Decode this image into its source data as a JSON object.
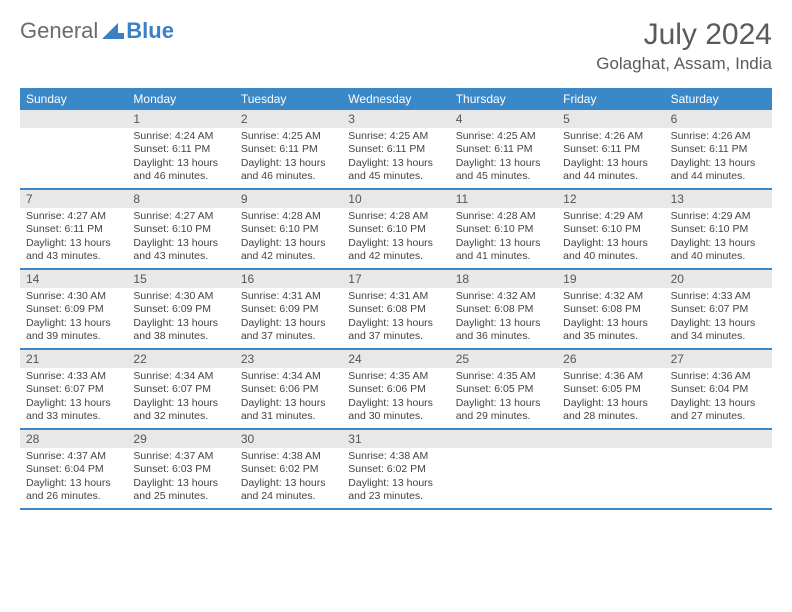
{
  "logo": {
    "text1": "General",
    "text2": "Blue"
  },
  "title": "July 2024",
  "location": "Golaghat, Assam, India",
  "colors": {
    "header_bg": "#3b88c9",
    "header_text": "#ffffff",
    "daynum_bg": "#e8e8e8",
    "text": "#444444",
    "logo_gray": "#6b6b6b",
    "logo_blue": "#3b7fc4"
  },
  "weekdays": [
    "Sunday",
    "Monday",
    "Tuesday",
    "Wednesday",
    "Thursday",
    "Friday",
    "Saturday"
  ],
  "weeks": [
    [
      {
        "n": "",
        "lines": []
      },
      {
        "n": "1",
        "lines": [
          "Sunrise: 4:24 AM",
          "Sunset: 6:11 PM",
          "Daylight: 13 hours",
          "and 46 minutes."
        ]
      },
      {
        "n": "2",
        "lines": [
          "Sunrise: 4:25 AM",
          "Sunset: 6:11 PM",
          "Daylight: 13 hours",
          "and 46 minutes."
        ]
      },
      {
        "n": "3",
        "lines": [
          "Sunrise: 4:25 AM",
          "Sunset: 6:11 PM",
          "Daylight: 13 hours",
          "and 45 minutes."
        ]
      },
      {
        "n": "4",
        "lines": [
          "Sunrise: 4:25 AM",
          "Sunset: 6:11 PM",
          "Daylight: 13 hours",
          "and 45 minutes."
        ]
      },
      {
        "n": "5",
        "lines": [
          "Sunrise: 4:26 AM",
          "Sunset: 6:11 PM",
          "Daylight: 13 hours",
          "and 44 minutes."
        ]
      },
      {
        "n": "6",
        "lines": [
          "Sunrise: 4:26 AM",
          "Sunset: 6:11 PM",
          "Daylight: 13 hours",
          "and 44 minutes."
        ]
      }
    ],
    [
      {
        "n": "7",
        "lines": [
          "Sunrise: 4:27 AM",
          "Sunset: 6:11 PM",
          "Daylight: 13 hours",
          "and 43 minutes."
        ]
      },
      {
        "n": "8",
        "lines": [
          "Sunrise: 4:27 AM",
          "Sunset: 6:10 PM",
          "Daylight: 13 hours",
          "and 43 minutes."
        ]
      },
      {
        "n": "9",
        "lines": [
          "Sunrise: 4:28 AM",
          "Sunset: 6:10 PM",
          "Daylight: 13 hours",
          "and 42 minutes."
        ]
      },
      {
        "n": "10",
        "lines": [
          "Sunrise: 4:28 AM",
          "Sunset: 6:10 PM",
          "Daylight: 13 hours",
          "and 42 minutes."
        ]
      },
      {
        "n": "11",
        "lines": [
          "Sunrise: 4:28 AM",
          "Sunset: 6:10 PM",
          "Daylight: 13 hours",
          "and 41 minutes."
        ]
      },
      {
        "n": "12",
        "lines": [
          "Sunrise: 4:29 AM",
          "Sunset: 6:10 PM",
          "Daylight: 13 hours",
          "and 40 minutes."
        ]
      },
      {
        "n": "13",
        "lines": [
          "Sunrise: 4:29 AM",
          "Sunset: 6:10 PM",
          "Daylight: 13 hours",
          "and 40 minutes."
        ]
      }
    ],
    [
      {
        "n": "14",
        "lines": [
          "Sunrise: 4:30 AM",
          "Sunset: 6:09 PM",
          "Daylight: 13 hours",
          "and 39 minutes."
        ]
      },
      {
        "n": "15",
        "lines": [
          "Sunrise: 4:30 AM",
          "Sunset: 6:09 PM",
          "Daylight: 13 hours",
          "and 38 minutes."
        ]
      },
      {
        "n": "16",
        "lines": [
          "Sunrise: 4:31 AM",
          "Sunset: 6:09 PM",
          "Daylight: 13 hours",
          "and 37 minutes."
        ]
      },
      {
        "n": "17",
        "lines": [
          "Sunrise: 4:31 AM",
          "Sunset: 6:08 PM",
          "Daylight: 13 hours",
          "and 37 minutes."
        ]
      },
      {
        "n": "18",
        "lines": [
          "Sunrise: 4:32 AM",
          "Sunset: 6:08 PM",
          "Daylight: 13 hours",
          "and 36 minutes."
        ]
      },
      {
        "n": "19",
        "lines": [
          "Sunrise: 4:32 AM",
          "Sunset: 6:08 PM",
          "Daylight: 13 hours",
          "and 35 minutes."
        ]
      },
      {
        "n": "20",
        "lines": [
          "Sunrise: 4:33 AM",
          "Sunset: 6:07 PM",
          "Daylight: 13 hours",
          "and 34 minutes."
        ]
      }
    ],
    [
      {
        "n": "21",
        "lines": [
          "Sunrise: 4:33 AM",
          "Sunset: 6:07 PM",
          "Daylight: 13 hours",
          "and 33 minutes."
        ]
      },
      {
        "n": "22",
        "lines": [
          "Sunrise: 4:34 AM",
          "Sunset: 6:07 PM",
          "Daylight: 13 hours",
          "and 32 minutes."
        ]
      },
      {
        "n": "23",
        "lines": [
          "Sunrise: 4:34 AM",
          "Sunset: 6:06 PM",
          "Daylight: 13 hours",
          "and 31 minutes."
        ]
      },
      {
        "n": "24",
        "lines": [
          "Sunrise: 4:35 AM",
          "Sunset: 6:06 PM",
          "Daylight: 13 hours",
          "and 30 minutes."
        ]
      },
      {
        "n": "25",
        "lines": [
          "Sunrise: 4:35 AM",
          "Sunset: 6:05 PM",
          "Daylight: 13 hours",
          "and 29 minutes."
        ]
      },
      {
        "n": "26",
        "lines": [
          "Sunrise: 4:36 AM",
          "Sunset: 6:05 PM",
          "Daylight: 13 hours",
          "and 28 minutes."
        ]
      },
      {
        "n": "27",
        "lines": [
          "Sunrise: 4:36 AM",
          "Sunset: 6:04 PM",
          "Daylight: 13 hours",
          "and 27 minutes."
        ]
      }
    ],
    [
      {
        "n": "28",
        "lines": [
          "Sunrise: 4:37 AM",
          "Sunset: 6:04 PM",
          "Daylight: 13 hours",
          "and 26 minutes."
        ]
      },
      {
        "n": "29",
        "lines": [
          "Sunrise: 4:37 AM",
          "Sunset: 6:03 PM",
          "Daylight: 13 hours",
          "and 25 minutes."
        ]
      },
      {
        "n": "30",
        "lines": [
          "Sunrise: 4:38 AM",
          "Sunset: 6:02 PM",
          "Daylight: 13 hours",
          "and 24 minutes."
        ]
      },
      {
        "n": "31",
        "lines": [
          "Sunrise: 4:38 AM",
          "Sunset: 6:02 PM",
          "Daylight: 13 hours",
          "and 23 minutes."
        ]
      },
      {
        "n": "",
        "lines": []
      },
      {
        "n": "",
        "lines": []
      },
      {
        "n": "",
        "lines": []
      }
    ]
  ]
}
